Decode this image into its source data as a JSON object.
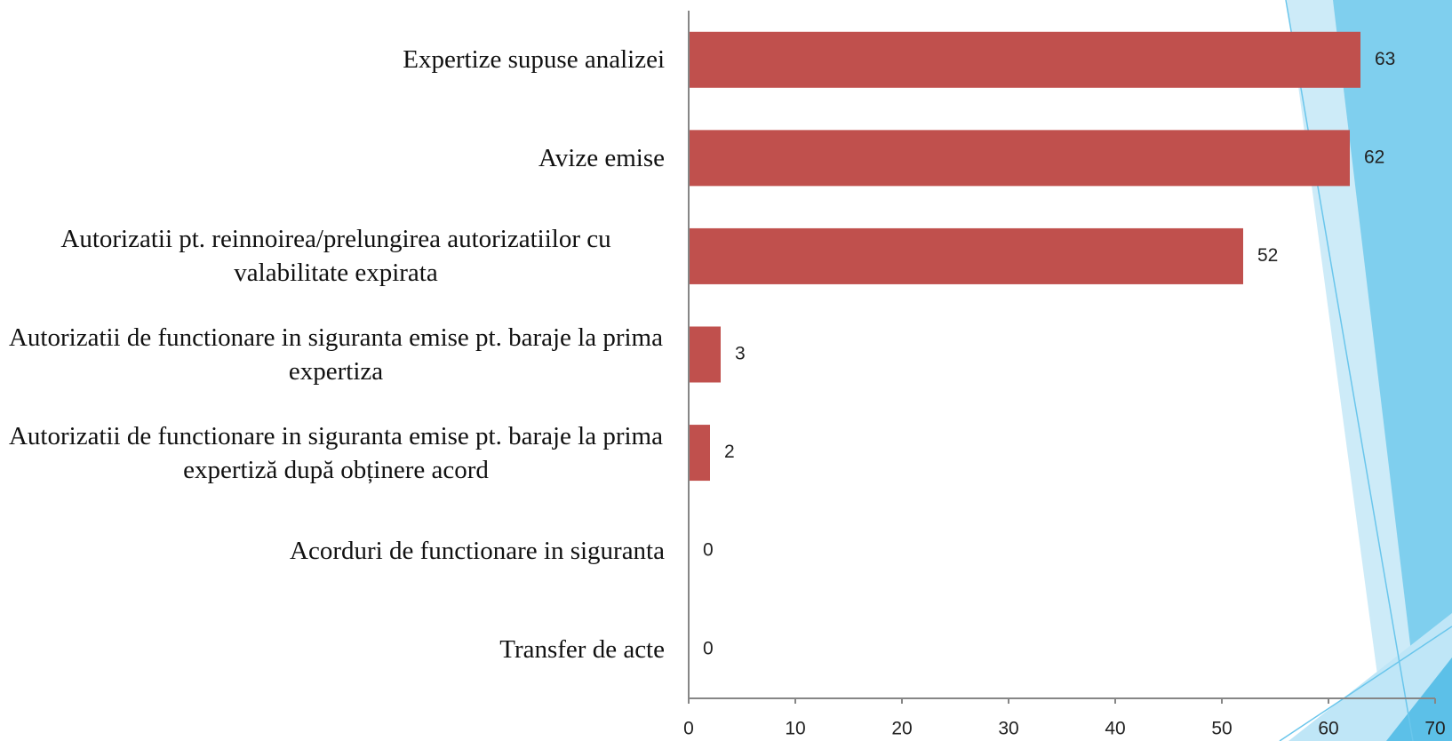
{
  "chart_data": {
    "type": "bar",
    "orientation": "horizontal",
    "categories": [
      "Expertize supuse analizei",
      "Avize emise",
      "Autorizatii pt. reinnoirea/prelungirea autorizatiilor cu valabilitate expirata",
      "Autorizatii de functionare in siguranta emise pt. baraje la prima expertiza",
      "Autorizatii de functionare in siguranta emise pt. baraje la prima expertiză după obținere acord",
      "Acorduri de functionare in siguranta",
      "Transfer de acte"
    ],
    "values": [
      63,
      62,
      52,
      3,
      2,
      0,
      0
    ],
    "color": "#c0504d",
    "xlim": [
      0,
      70
    ],
    "xticks": [
      0,
      10,
      20,
      30,
      40,
      50,
      60,
      70
    ],
    "grid": false
  }
}
